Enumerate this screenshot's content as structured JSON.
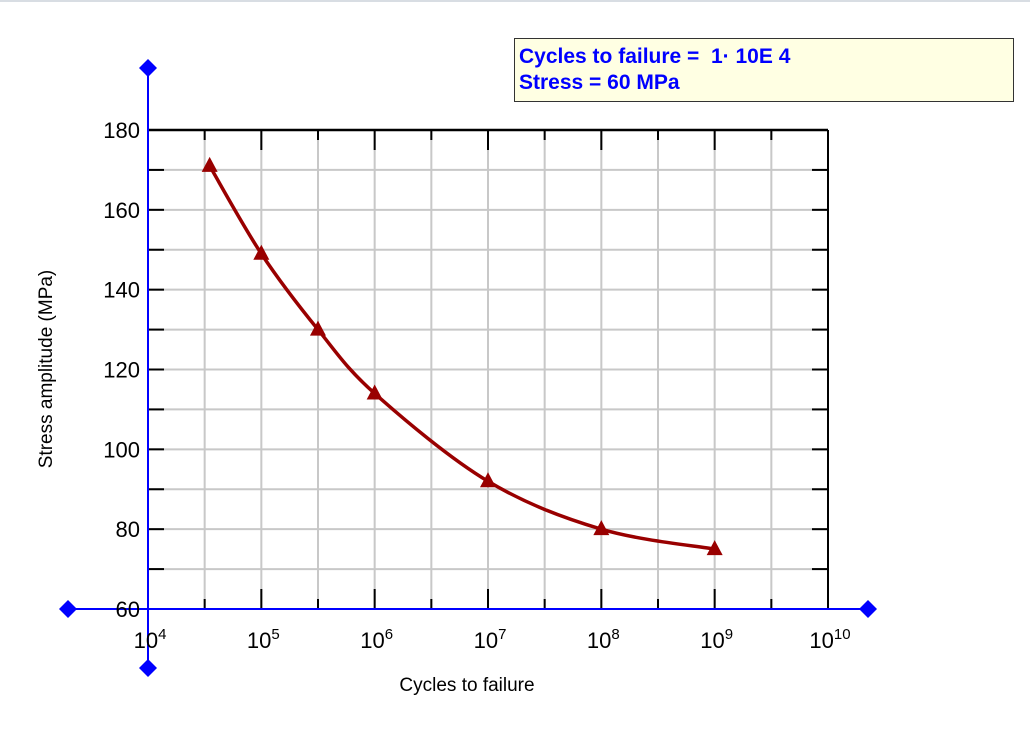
{
  "readout": {
    "line1": "Cycles to failure =  1· 10E 4",
    "line2": "Stress = 60 MPa"
  },
  "chart_data": {
    "type": "line",
    "xlabel": "Cycles to failure",
    "ylabel": "Stress amplitude (MPa)",
    "x_scale": "log",
    "xlim": [
      10000,
      10000000000
    ],
    "ylim": [
      60,
      180
    ],
    "x_ticks": [
      {
        "base": "10",
        "exp": "4"
      },
      {
        "base": "10",
        "exp": "5"
      },
      {
        "base": "10",
        "exp": "6"
      },
      {
        "base": "10",
        "exp": "7"
      },
      {
        "base": "10",
        "exp": "8"
      },
      {
        "base": "10",
        "exp": "9"
      },
      {
        "base": "10",
        "exp": "10"
      }
    ],
    "y_ticks": [
      "60",
      "80",
      "100",
      "120",
      "140",
      "160",
      "180"
    ],
    "grid": true,
    "marker": "triangle",
    "series": [
      {
        "color": "#990000",
        "x": [
          35000,
          100000,
          316000,
          1000000,
          10000000,
          100000000,
          1000000000
        ],
        "y": [
          171,
          149,
          130,
          114,
          92,
          80,
          75
        ]
      }
    ],
    "cursor_color": "#0000ff"
  }
}
